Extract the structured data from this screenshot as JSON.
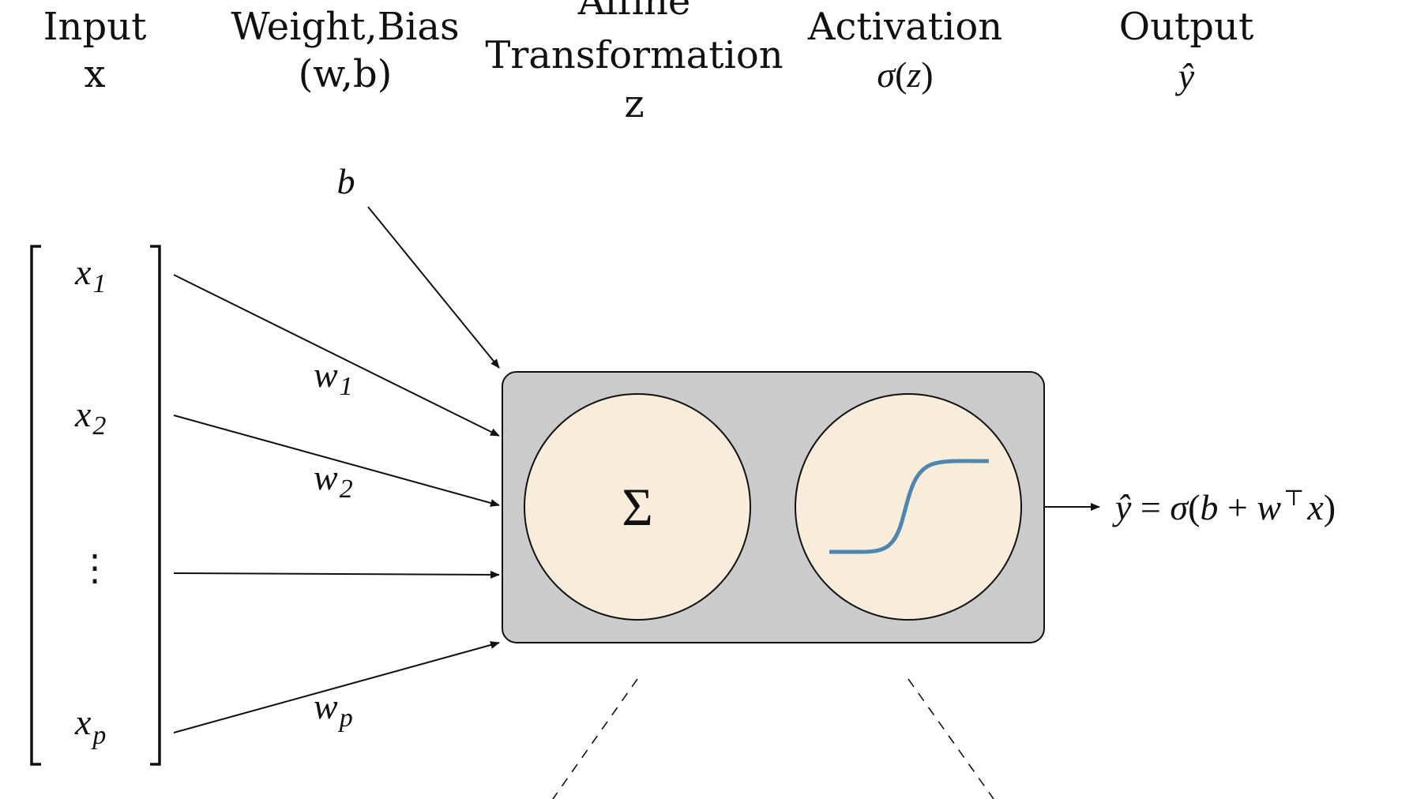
{
  "headers": {
    "input": {
      "line1": "Input",
      "line2": "x"
    },
    "weight_bias": {
      "line1": "Weight,Bias",
      "line2": "(w,b)"
    },
    "affine": {
      "line1": "Affine",
      "line2": "Transformation",
      "line3": "z"
    },
    "activation": {
      "line1": "Activation",
      "line2_sigma": "σ",
      "line2_rest_open": "(",
      "line2_z": "z",
      "line2_rest_close": ")"
    },
    "output": {
      "line1": "Output",
      "line2": "ŷ"
    }
  },
  "inputs": {
    "x1": {
      "base": "x",
      "sub": "1"
    },
    "x2": {
      "base": "x",
      "sub": "2"
    },
    "dots": "⋮",
    "xp": {
      "base": "x",
      "sub": "p"
    }
  },
  "weights": {
    "w1": {
      "base": "w",
      "sub": "1"
    },
    "w2": {
      "base": "w",
      "sub": "2"
    },
    "wp": {
      "base": "w",
      "sub": "p"
    }
  },
  "bias_label": "b",
  "sum_symbol": "Σ",
  "output_formula": {
    "yhat": "ŷ",
    "equals": " = ",
    "sigma": "σ",
    "open": "(",
    "b": "b",
    "plus": " + ",
    "w": "w",
    "transpose": "⊤",
    "x": "x",
    "close": ")"
  },
  "colors": {
    "node_box": "#cbcbcb",
    "circle_fill": "#f8ecdb",
    "sigmoid_curve": "#4f86b0",
    "stroke": "#111111"
  }
}
